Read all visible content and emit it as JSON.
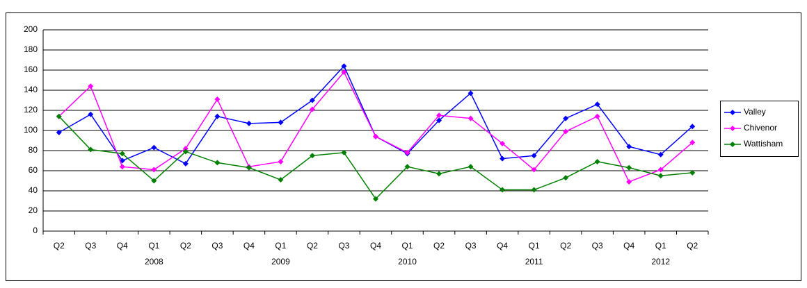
{
  "chart_data": {
    "type": "line",
    "categories": [
      "Q2",
      "Q3",
      "Q4",
      "Q1",
      "Q2",
      "Q3",
      "Q4",
      "Q1",
      "Q2",
      "Q3",
      "Q4",
      "Q1",
      "Q2",
      "Q3",
      "Q4",
      "Q1",
      "Q2",
      "Q3",
      "Q4",
      "Q1",
      "Q2"
    ],
    "years": [
      null,
      null,
      null,
      "2008",
      null,
      null,
      null,
      "2009",
      null,
      null,
      null,
      "2010",
      null,
      null,
      null,
      "2011",
      null,
      null,
      null,
      "2012",
      null
    ],
    "series": [
      {
        "name": "Valley",
        "color": "#0000ff",
        "values": [
          98,
          116,
          70,
          83,
          67,
          114,
          107,
          108,
          130,
          164,
          94,
          77,
          110,
          137,
          72,
          75,
          112,
          126,
          84,
          76,
          104
        ]
      },
      {
        "name": "Chivenor",
        "color": "#ff00ff",
        "values": [
          114,
          144,
          64,
          61,
          82,
          131,
          64,
          69,
          121,
          158,
          94,
          78,
          115,
          112,
          87,
          61,
          99,
          114,
          49,
          61,
          88
        ]
      },
      {
        "name": "Wattisham",
        "color": "#008000",
        "values": [
          114,
          81,
          77,
          50,
          79,
          68,
          63,
          51,
          75,
          78,
          32,
          64,
          57,
          64,
          41,
          41,
          53,
          69,
          63,
          55,
          58
        ]
      }
    ],
    "ylim": [
      0,
      200
    ],
    "yticks": [
      0,
      20,
      40,
      60,
      80,
      100,
      120,
      140,
      160,
      180,
      200
    ],
    "grid": true,
    "legend": "right"
  }
}
